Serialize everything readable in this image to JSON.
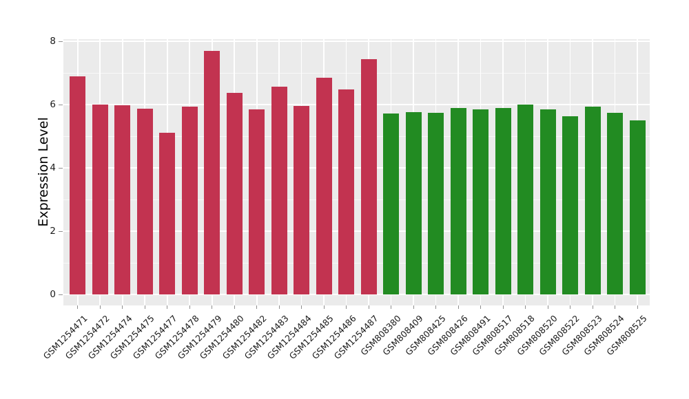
{
  "chart_data": {
    "type": "bar",
    "title": "",
    "xlabel": "",
    "ylabel": "Expression Level",
    "ylim": [
      -0.34,
      8.04
    ],
    "yticks_major": [
      0,
      2,
      4,
      6,
      8
    ],
    "yticks_minor": [
      1,
      3,
      5,
      7
    ],
    "grid": "on",
    "legend_position": "none",
    "plot_background_color": "#ebebeb",
    "gridline_color": "#ffffff",
    "tick_mark_color": "#8e8e8e",
    "tick_label_color": "#1a1a1a",
    "group_colors": {
      "gsm1254xxx_group": "#c23350",
      "gsm808xxx_group": "#228b22"
    },
    "bars": [
      {
        "label": "GSM1254471",
        "value": 6.9,
        "color": "#c23350"
      },
      {
        "label": "GSM1254472",
        "value": 6.0,
        "color": "#c23350"
      },
      {
        "label": "GSM1254474",
        "value": 5.98,
        "color": "#c23350"
      },
      {
        "label": "GSM1254475",
        "value": 5.86,
        "color": "#c23350"
      },
      {
        "label": "GSM1254477",
        "value": 5.11,
        "color": "#c23350"
      },
      {
        "label": "GSM1254478",
        "value": 5.93,
        "color": "#c23350"
      },
      {
        "label": "GSM1254479",
        "value": 7.7,
        "color": "#c23350"
      },
      {
        "label": "GSM1254480",
        "value": 6.38,
        "color": "#c23350"
      },
      {
        "label": "GSM1254482",
        "value": 5.85,
        "color": "#c23350"
      },
      {
        "label": "GSM1254483",
        "value": 6.56,
        "color": "#c23350"
      },
      {
        "label": "GSM1254484",
        "value": 5.95,
        "color": "#c23350"
      },
      {
        "label": "GSM1254485",
        "value": 6.85,
        "color": "#c23350"
      },
      {
        "label": "GSM1254486",
        "value": 6.47,
        "color": "#c23350"
      },
      {
        "label": "GSM1254487",
        "value": 7.43,
        "color": "#c23350"
      },
      {
        "label": "GSM808380",
        "value": 5.72,
        "color": "#228b22"
      },
      {
        "label": "GSM808409",
        "value": 5.76,
        "color": "#228b22"
      },
      {
        "label": "GSM808425",
        "value": 5.73,
        "color": "#228b22"
      },
      {
        "label": "GSM808426",
        "value": 5.89,
        "color": "#228b22"
      },
      {
        "label": "GSM808491",
        "value": 5.84,
        "color": "#228b22"
      },
      {
        "label": "GSM808517",
        "value": 5.89,
        "color": "#228b22"
      },
      {
        "label": "GSM808518",
        "value": 5.99,
        "color": "#228b22"
      },
      {
        "label": "GSM808520",
        "value": 5.84,
        "color": "#228b22"
      },
      {
        "label": "GSM808522",
        "value": 5.64,
        "color": "#228b22"
      },
      {
        "label": "GSM808523",
        "value": 5.94,
        "color": "#228b22"
      },
      {
        "label": "GSM808524",
        "value": 5.75,
        "color": "#228b22"
      },
      {
        "label": "GSM808525",
        "value": 5.51,
        "color": "#228b22"
      }
    ]
  }
}
